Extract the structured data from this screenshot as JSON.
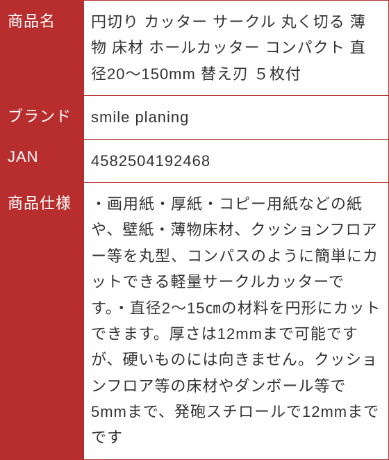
{
  "table": {
    "header_bg_color": "#b82e2e",
    "header_text_color": "#ffffff",
    "cell_bg_color": "#ffffff",
    "cell_text_color": "#333333",
    "border_color": "#b82e2e",
    "font_size": 22,
    "rows": [
      {
        "label": "商品名",
        "value": "円切り カッター サークル 丸く切る 薄物 床材 ホールカッター コンパクト 直径20〜150mm 替え刃 ５枚付"
      },
      {
        "label": "ブランド",
        "value": "smile planing"
      },
      {
        "label": "JAN",
        "value": "4582504192468"
      },
      {
        "label": "商品仕様",
        "value": "・画用紙・厚紙・コピー用紙などの紙や、壁紙・薄物床材、クッションフロアー等を丸型、コンパスのように簡単にカットできる軽量サークルカッターです。・直径2〜15㎝の材料を円形にカットできます。厚さは12mmまで可能ですが、硬いものには向きません。クッションフロア等の床材やダンボール等で5mmまで、発砲スチロールで12mmまでです"
      }
    ]
  }
}
